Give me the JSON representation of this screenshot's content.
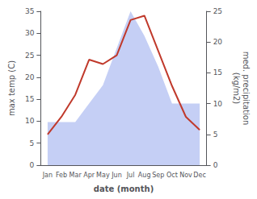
{
  "chart_data": {
    "type": "line",
    "categories": [
      "Jan",
      "Feb",
      "Mar",
      "Apr",
      "May",
      "Jun",
      "Jul",
      "Aug",
      "Sep",
      "Oct",
      "Nov",
      "Dec"
    ],
    "series": [
      {
        "type": "area",
        "axis": "y2",
        "color": "#c5cff5",
        "values": [
          7,
          7,
          7,
          10,
          13,
          19,
          25,
          21,
          16,
          10,
          10,
          10
        ]
      },
      {
        "type": "line",
        "color": "#c0392b",
        "values": [
          7,
          11,
          16,
          24,
          23,
          25,
          33,
          34,
          26,
          18,
          11,
          8
        ]
      }
    ],
    "xlabel": "date (month)",
    "ylabel": "max temp (C)",
    "y2label": "med. precipitation\n(kg/m2)",
    "ylim": [
      0,
      35
    ],
    "yticks": [
      0,
      5,
      10,
      15,
      20,
      25,
      30,
      35
    ],
    "y2lim": [
      0,
      25
    ],
    "y2ticks": [
      0,
      5,
      10,
      15,
      20,
      25
    ],
    "grid": false
  }
}
